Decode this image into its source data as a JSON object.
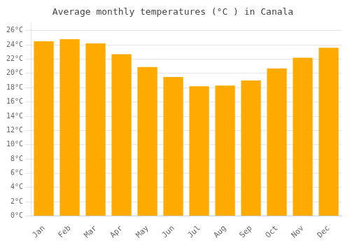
{
  "chart_data": {
    "type": "bar",
    "title": "Average monthly temperatures (°C ) in Canala",
    "categories": [
      "Jan",
      "Feb",
      "Mar",
      "Apr",
      "May",
      "Jun",
      "Jul",
      "Aug",
      "Sep",
      "Oct",
      "Nov",
      "Dec"
    ],
    "values": [
      24.5,
      24.8,
      24.2,
      22.7,
      20.9,
      19.5,
      18.2,
      18.3,
      19.0,
      20.7,
      22.2,
      23.6
    ],
    "color": "#FFAA00",
    "ylim": [
      0,
      27
    ],
    "yticks": [
      {
        "value": 0,
        "label": "0°C"
      },
      {
        "value": 2,
        "label": "2°C"
      },
      {
        "value": 4,
        "label": "4°C"
      },
      {
        "value": 6,
        "label": "6°C"
      },
      {
        "value": 8,
        "label": "8°C"
      },
      {
        "value": 10,
        "label": "10°C"
      },
      {
        "value": 12,
        "label": "12°C"
      },
      {
        "value": 14,
        "label": "14°C"
      },
      {
        "value": 16,
        "label": "16°C"
      },
      {
        "value": 18,
        "label": "18°C"
      },
      {
        "value": 20,
        "label": "20°C"
      },
      {
        "value": 22,
        "label": "22°C"
      },
      {
        "value": 24,
        "label": "24°C"
      },
      {
        "value": 26,
        "label": "26°C"
      }
    ],
    "grid": true
  }
}
